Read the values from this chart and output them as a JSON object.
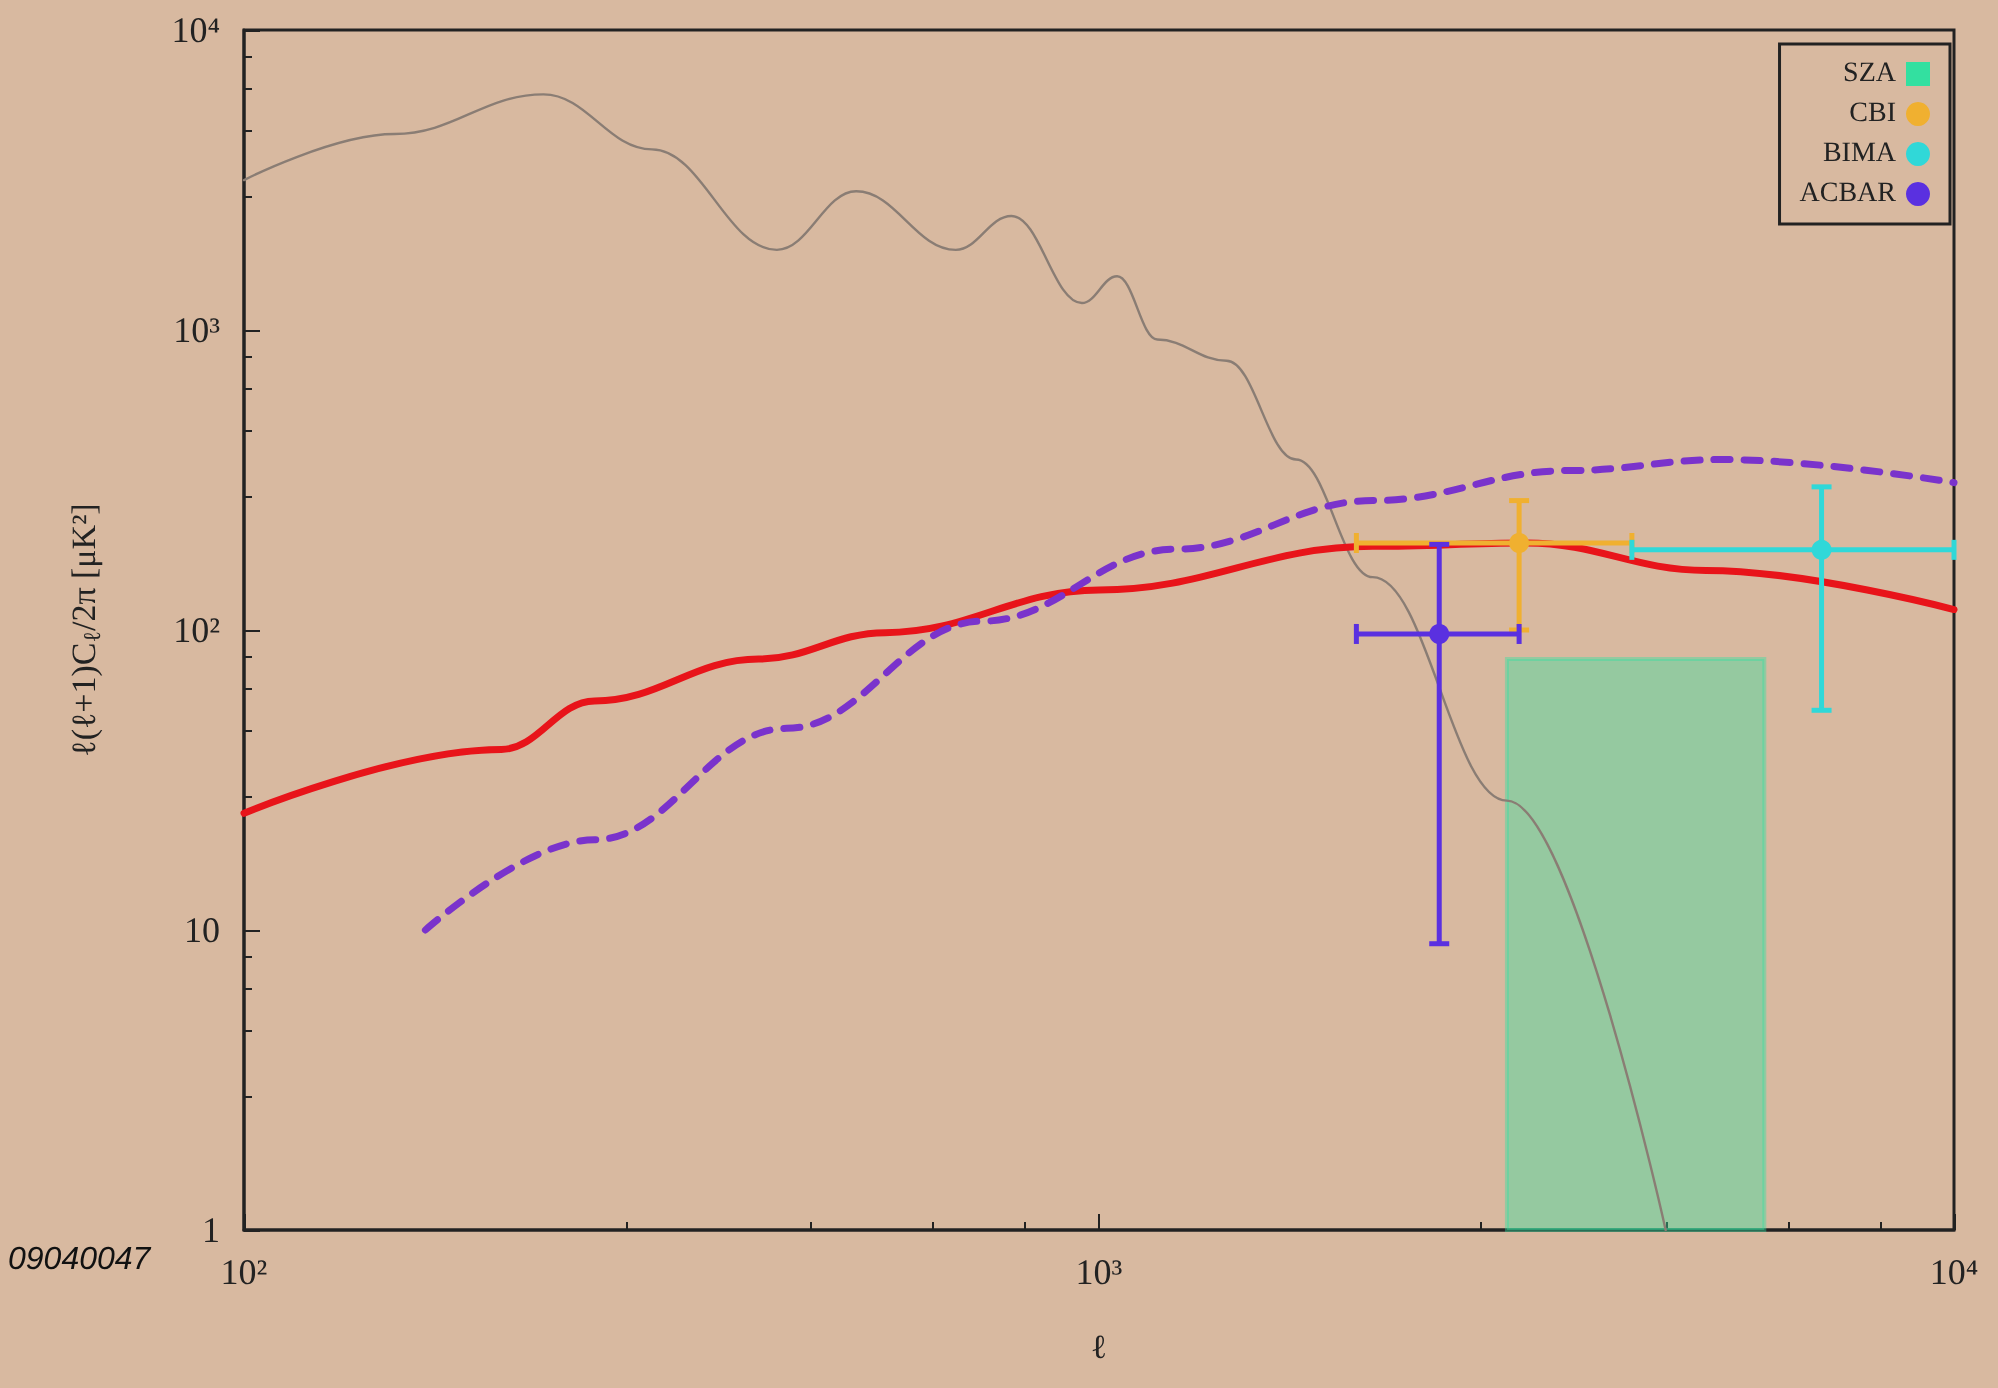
{
  "chart_data": {
    "type": "line",
    "xlabel": "ℓ",
    "ylabel": "ℓ(ℓ+1)C$_{ℓ}$/2π [μK²]",
    "log": "xy",
    "grid": false,
    "legend": "top right",
    "xlim": [
      100,
      10000
    ],
    "xticks": [
      {
        "value": 100,
        "label": "10²"
      },
      {
        "value": 1000,
        "label": "10³"
      },
      {
        "value": 10000,
        "label": "10⁴"
      }
    ],
    "ylim": [
      1,
      10000
    ],
    "yticks": [
      1,
      10,
      {
        "value": 100,
        "label": "10²"
      },
      {
        "value": 1000,
        "label": "10³"
      },
      {
        "value": 10000,
        "label": "10⁴"
      }
    ],
    "annotations": [
      "09040047"
    ],
    "series": [
      {
        "color": "#8a7d74",
        "x": [
          100,
          150,
          224,
          300,
          420,
          520,
          680,
          790,
          955,
          1050,
          1170,
          1410,
          1700,
          2090,
          3000,
          4600
        ],
        "values": [
          3160,
          4500,
          6100,
          4000,
          1850,
          2900,
          1850,
          2400,
          1230,
          1510,
          930,
          790,
          370,
          150,
          27,
          1
        ]
      },
      {
        "color": "#e8141a",
        "x": [
          100,
          200,
          257,
          400,
          562,
          1000,
          2090,
          3160,
          5130,
          10000
        ],
        "values": [
          24.5,
          40,
          58,
          80,
          98,
          136,
          190,
          195,
          158,
          117
        ]
      },
      {
        "color": "#7a33cc",
        "line_style": "dashed",
        "x": [
          163,
          257,
          431,
          730,
          1230,
          2090,
          3550,
          5370,
          10000
        ],
        "values": [
          10,
          20,
          47,
          107,
          186,
          270,
          340,
          370,
          310
        ]
      },
      {
        "type": "area",
        "name": "SZA",
        "color": "#33e0a0",
        "x": [
          3000,
          6000
        ],
        "values": [
          80,
          80
        ]
      },
      {
        "type": "scatter",
        "name": "CBI",
        "color": "#f0b030",
        "x": [
          3100
        ],
        "values": [
          195
        ],
        "errors": [
          [
            100,
            270
          ]
        ],
        "xerrors": [
          [
            2000,
            4200
          ]
        ]
      },
      {
        "type": "scatter",
        "name": "BIMA",
        "color": "#30d8d8",
        "x": [
          7000
        ],
        "values": [
          185
        ],
        "errors": [
          [
            54,
            300
          ]
        ],
        "xerrors": [
          [
            4200,
            10000
          ]
        ]
      },
      {
        "type": "scatter",
        "name": "ACBAR",
        "color": "#5a30e0",
        "x": [
          2500
        ],
        "values": [
          97
        ],
        "errors": [
          [
            9,
            193
          ]
        ],
        "xerrors": [
          [
            2000,
            3100
          ]
        ]
      }
    ]
  }
}
